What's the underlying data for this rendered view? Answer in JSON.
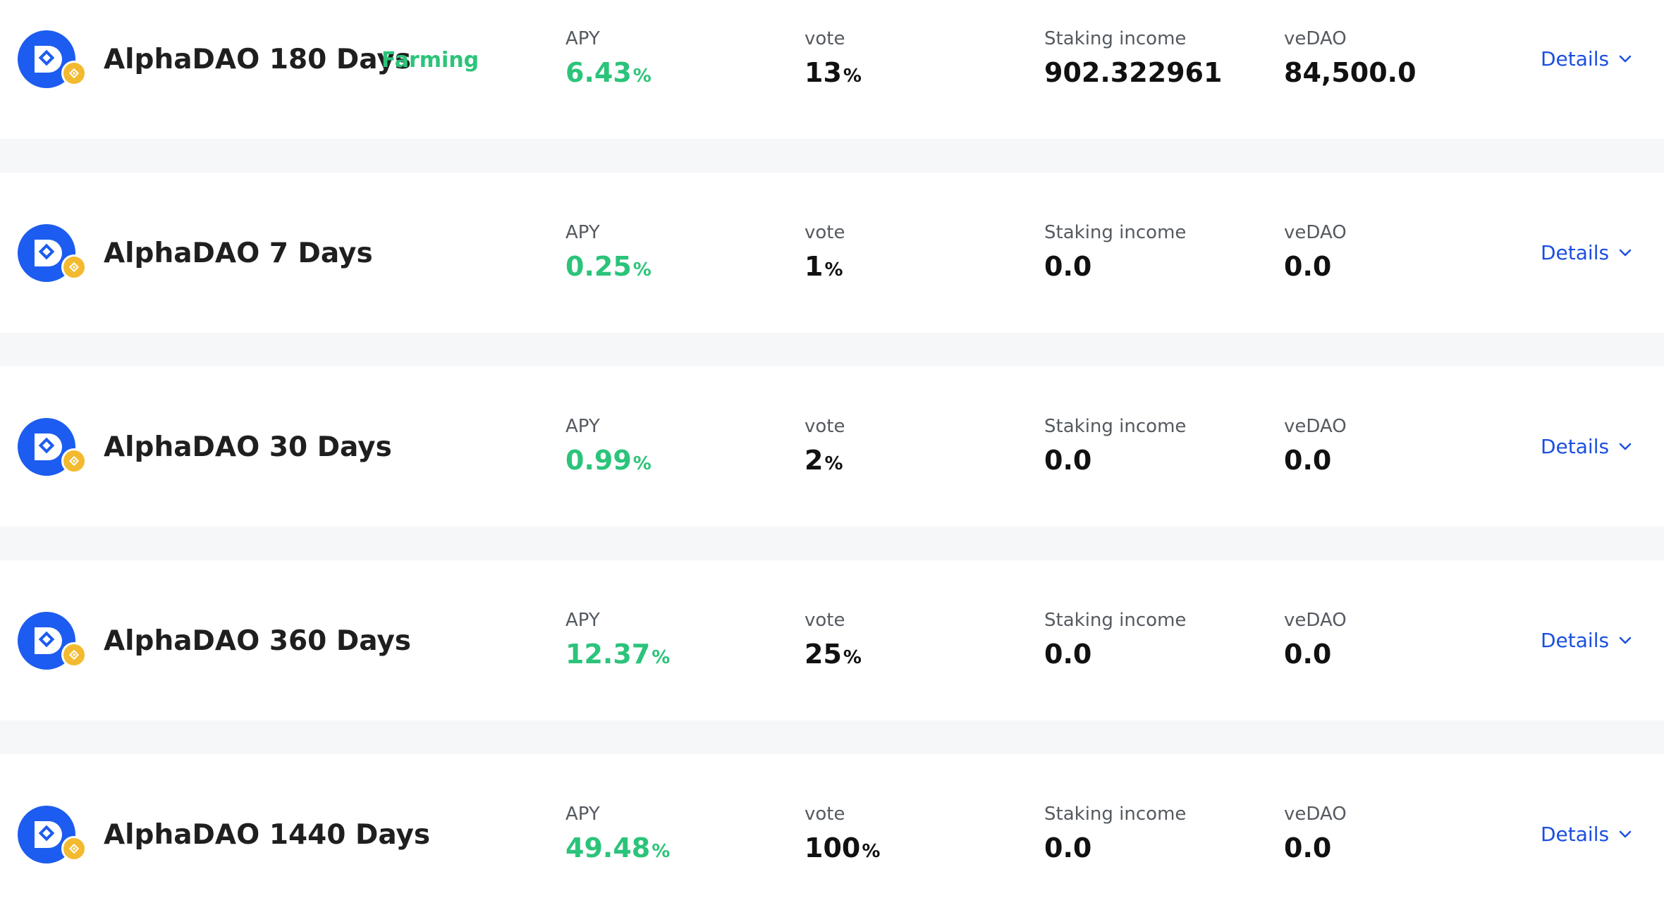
{
  "pools": [
    {
      "name": "AlphaDAO 180 Days",
      "tag": "Farming",
      "apy_label": "APY",
      "apy_value": "6.43",
      "apy_unit": "%",
      "vote_label": "vote",
      "vote_value": "13",
      "vote_unit": "%",
      "income_label": "Staking income",
      "income_value": "902.322961",
      "vedao_label": "veDAO",
      "vedao_value": "84,500.0",
      "details_label": "Details"
    },
    {
      "name": "AlphaDAO 7 Days",
      "tag": "",
      "apy_label": "APY",
      "apy_value": "0.25",
      "apy_unit": "%",
      "vote_label": "vote",
      "vote_value": "1",
      "vote_unit": "%",
      "income_label": "Staking income",
      "income_value": "0.0",
      "vedao_label": "veDAO",
      "vedao_value": "0.0",
      "details_label": "Details"
    },
    {
      "name": "AlphaDAO 30 Days",
      "tag": "",
      "apy_label": "APY",
      "apy_value": "0.99",
      "apy_unit": "%",
      "vote_label": "vote",
      "vote_value": "2",
      "vote_unit": "%",
      "income_label": "Staking income",
      "income_value": "0.0",
      "vedao_label": "veDAO",
      "vedao_value": "0.0",
      "details_label": "Details"
    },
    {
      "name": "AlphaDAO 360 Days",
      "tag": "",
      "apy_label": "APY",
      "apy_value": "12.37",
      "apy_unit": "%",
      "vote_label": "vote",
      "vote_value": "25",
      "vote_unit": "%",
      "income_label": "Staking income",
      "income_value": "0.0",
      "vedao_label": "veDAO",
      "vedao_value": "0.0",
      "details_label": "Details"
    },
    {
      "name": "AlphaDAO 1440 Days",
      "tag": "",
      "apy_label": "APY",
      "apy_value": "49.48",
      "apy_unit": "%",
      "vote_label": "vote",
      "vote_value": "100",
      "vote_unit": "%",
      "income_label": "Staking income",
      "income_value": "0.0",
      "vedao_label": "veDAO",
      "vedao_value": "0.0",
      "details_label": "Details"
    }
  ],
  "icons": {
    "token_logo": "alphadao-logo-icon",
    "chain_badge": "bnb-chain-icon",
    "expand": "chevron-down-icon"
  },
  "colors": {
    "accent_green": "#2bc47a",
    "link_blue": "#1b4fe0",
    "logo_blue": "#1d5cf0",
    "badge_gold": "#f3ba2f",
    "separator": "#f6f7f9"
  }
}
